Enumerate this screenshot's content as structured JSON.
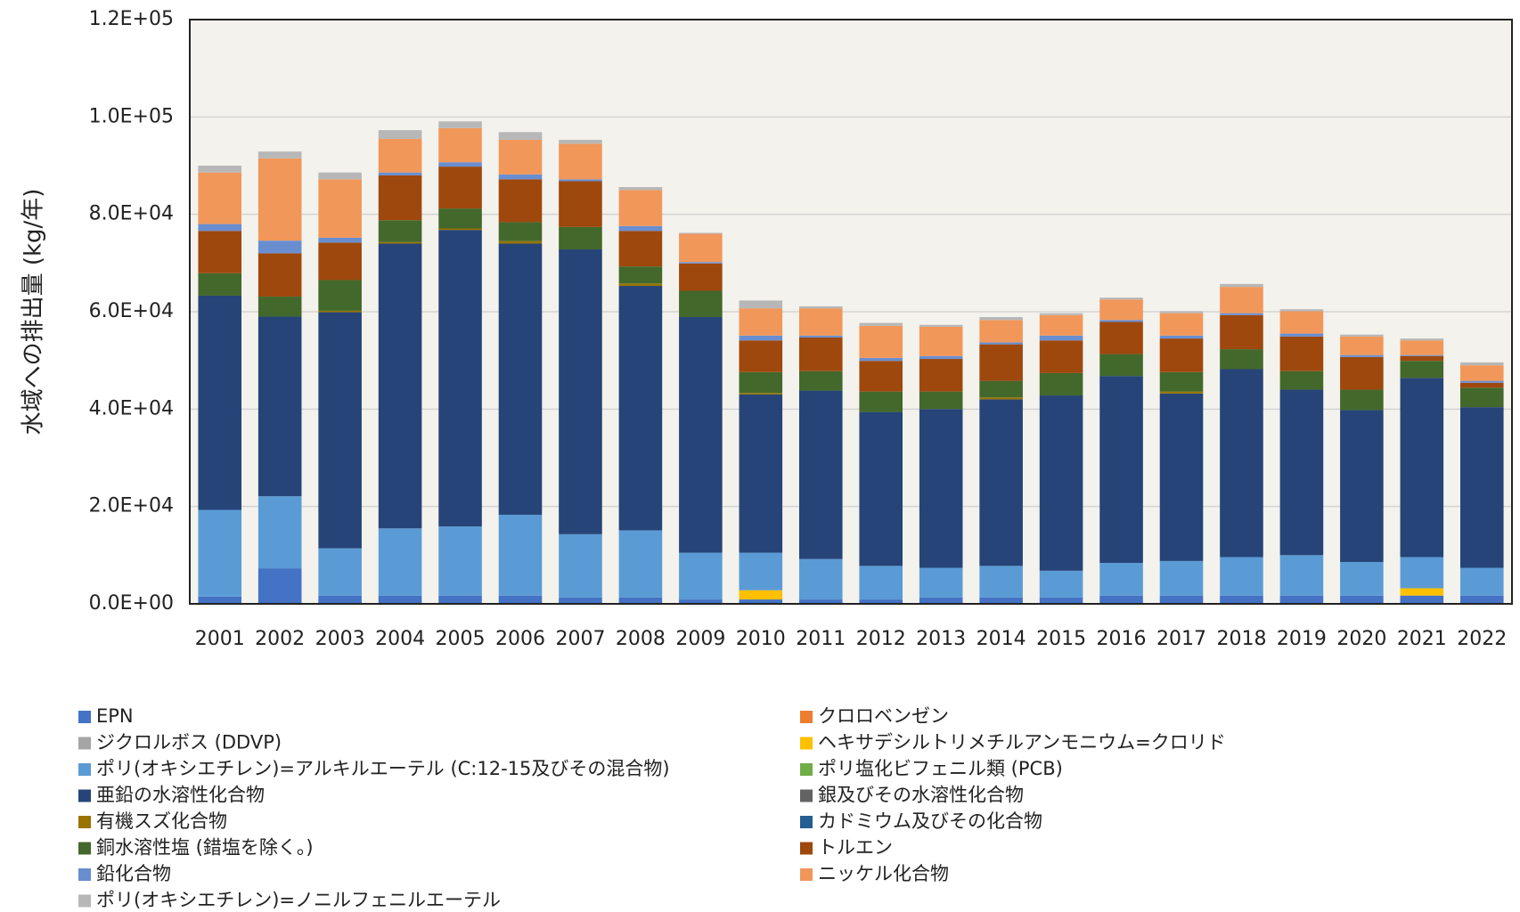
{
  "chart_data": {
    "type": "stacked-bar",
    "y_label": "水域への排出量 (kg/年)",
    "categories": [
      "2001",
      "2002",
      "2003",
      "2004",
      "2005",
      "2006",
      "2007",
      "2008",
      "2009",
      "2010",
      "2011",
      "2012",
      "2013",
      "2014",
      "2015",
      "2016",
      "2017",
      "2018",
      "2019",
      "2020",
      "2021",
      "2022"
    ],
    "ylim": [
      0,
      120000
    ],
    "yticks": [
      {
        "value": 0,
        "label": "0.0E+00"
      },
      {
        "value": 20000,
        "label": "2.0E+04"
      },
      {
        "value": 40000,
        "label": "4.0E+04"
      },
      {
        "value": 60000,
        "label": "6.0E+04"
      },
      {
        "value": 80000,
        "label": "8.0E+04"
      },
      {
        "value": 100000,
        "label": "1.0E+05"
      },
      {
        "value": 120000,
        "label": "1.2E+05"
      }
    ],
    "grid": true,
    "series": [
      {
        "name": "EPN",
        "color": "#4472c4",
        "values": [
          1500,
          7300,
          1700,
          1700,
          1700,
          1700,
          1300,
          1300,
          900,
          900,
          900,
          900,
          1300,
          1300,
          1300,
          1700,
          1700,
          1700,
          1700,
          1700,
          1700,
          1700
        ]
      },
      {
        "name": "クロロベンゼン",
        "color": "#ed7d31",
        "values": [
          0,
          0,
          0,
          0,
          0,
          0,
          0,
          0,
          0,
          0,
          0,
          0,
          0,
          0,
          0,
          0,
          0,
          0,
          0,
          0,
          0,
          0
        ]
      },
      {
        "name": "ジクロルボス (DDVP)",
        "color": "#a5a5a5",
        "values": [
          0,
          0,
          0,
          0,
          0,
          0,
          0,
          0,
          0,
          0,
          0,
          0,
          0,
          0,
          0,
          0,
          0,
          0,
          0,
          0,
          0,
          0
        ]
      },
      {
        "name": "ヘキサデシルトリメチルアンモニウム=クロリド",
        "color": "#ffc000",
        "values": [
          0,
          0,
          0,
          0,
          0,
          0,
          0,
          0,
          0,
          1900,
          0,
          0,
          0,
          0,
          0,
          0,
          0,
          0,
          0,
          0,
          1500,
          0
        ]
      },
      {
        "name": "ポリ(オキシエチレン)=アルキルエーテル (C:12-15及びその混合物)",
        "color": "#5b9bd5",
        "values": [
          17800,
          14800,
          9700,
          13800,
          14200,
          16600,
          13000,
          13800,
          9600,
          7700,
          8300,
          6900,
          6100,
          6500,
          5500,
          6700,
          7100,
          7900,
          8300,
          6900,
          6400,
          5700
        ]
      },
      {
        "name": "ポリ塩化ビフェニル類 (PCB)",
        "color": "#70ad47",
        "values": [
          0,
          0,
          0,
          0,
          0,
          0,
          0,
          0,
          0,
          0,
          0,
          0,
          0,
          0,
          0,
          0,
          0,
          0,
          0,
          0,
          0,
          0
        ]
      },
      {
        "name": "亜鉛の水溶性化合物",
        "color": "#264478",
        "values": [
          44000,
          36900,
          48500,
          58500,
          60900,
          55700,
          58500,
          50200,
          48400,
          32500,
          34600,
          31600,
          32600,
          34200,
          36000,
          38400,
          34400,
          38600,
          34000,
          31200,
          36800,
          33000
        ]
      },
      {
        "name": "銀及びその水溶性化合物",
        "color": "#636363",
        "values": [
          0,
          0,
          0,
          0,
          0,
          0,
          0,
          0,
          0,
          0,
          0,
          0,
          0,
          0,
          0,
          0,
          0,
          0,
          0,
          0,
          0,
          0
        ]
      },
      {
        "name": "有機スズ化合物",
        "color": "#997300",
        "values": [
          0,
          0,
          300,
          300,
          300,
          500,
          0,
          500,
          0,
          300,
          0,
          0,
          0,
          400,
          0,
          0,
          400,
          0,
          0,
          0,
          0,
          0
        ]
      },
      {
        "name": "カドミウム及びその化合物",
        "color": "#255e91",
        "values": [
          0,
          0,
          0,
          0,
          0,
          0,
          0,
          0,
          0,
          0,
          0,
          0,
          0,
          0,
          0,
          0,
          0,
          0,
          0,
          0,
          0,
          0
        ]
      },
      {
        "name": "銅水溶性塩 (錯塩を除く。)",
        "color": "#43682b",
        "values": [
          4600,
          4100,
          6300,
          4500,
          4100,
          3900,
          4600,
          3500,
          5400,
          4300,
          4000,
          4200,
          3600,
          3400,
          4600,
          4500,
          4000,
          4100,
          3800,
          4200,
          3500,
          4000
        ]
      },
      {
        "name": "トルエン",
        "color": "#9e480e",
        "values": [
          8700,
          8900,
          7700,
          9200,
          8600,
          8800,
          9400,
          7300,
          5600,
          6500,
          6900,
          6300,
          6700,
          7500,
          6700,
          6600,
          6900,
          7000,
          7100,
          6700,
          1000,
          1000
        ]
      },
      {
        "name": "鉛化合物",
        "color": "#698ed0",
        "values": [
          1400,
          2600,
          1000,
          600,
          900,
          1000,
          400,
          1000,
          300,
          1000,
          400,
          600,
          600,
          400,
          1000,
          400,
          600,
          400,
          600,
          400,
          200,
          400
        ]
      },
      {
        "name": "ニッケル化合物",
        "color": "#f1975a",
        "values": [
          10600,
          16900,
          12000,
          6900,
          7000,
          7100,
          7300,
          7400,
          5800,
          5600,
          5600,
          6600,
          6000,
          4600,
          4200,
          4200,
          4600,
          5400,
          4600,
          3800,
          3000,
          3200
        ]
      },
      {
        "name": "ポリ(オキシエチレン)=ノニルフェニルエーテル",
        "color": "#b7b7b7",
        "values": [
          1400,
          1400,
          1400,
          1800,
          1400,
          1600,
          800,
          600,
          200,
          1600,
          400,
          600,
          400,
          600,
          400,
          400,
          400,
          600,
          400,
          400,
          400,
          600
        ]
      }
    ]
  }
}
